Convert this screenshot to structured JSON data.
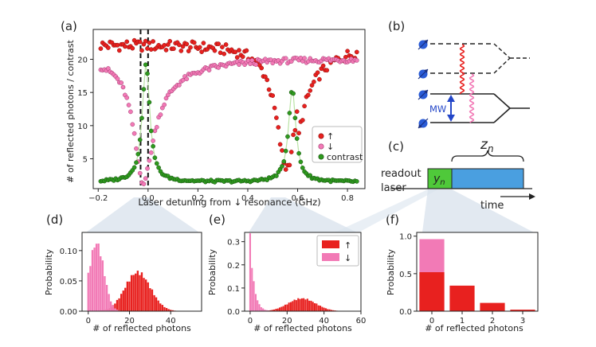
{
  "colors": {
    "up": "#e8211f",
    "down": "#f27ab6",
    "contrast": "#2e9a1e",
    "contrast_line": "#b9e3a4",
    "mw": "#2346c8",
    "readout": "#4fc93a",
    "zbox": "#4a9fe0",
    "arrow_red": "#e8211f",
    "arrow_pink": "#f27ab6"
  },
  "panels": {
    "a": {
      "label": "(a)",
      "xlabel": "Laser detuning from ↓ resonance (GHz)",
      "ylabel": "# of reflected photons / contrast",
      "legend_up": "↑",
      "legend_down": "↓",
      "legend_contrast": "contrast"
    },
    "b": {
      "label": "(b)",
      "mw_label": "MW"
    },
    "c": {
      "label": "(c)",
      "z_label": "z",
      "z_sub": "n",
      "y_label": "y",
      "y_sub": "n",
      "readout_label": "readout",
      "laser_label": "laser",
      "time_label": "time"
    },
    "d": {
      "label": "(d)",
      "xlabel": "# of reflected photons",
      "ylabel": "Probability"
    },
    "e": {
      "label": "(e)",
      "xlabel": "# of reflected photons",
      "ylabel": "Probability",
      "legend_up": "↑",
      "legend_down": "↓"
    },
    "f": {
      "label": "(f)",
      "xlabel": "# of reflected photons",
      "ylabel": "Probability"
    }
  },
  "chart_data": [
    {
      "id": "a",
      "type": "scatter",
      "xlim": [
        -0.22,
        0.87
      ],
      "ylim": [
        0.5,
        24.5
      ],
      "xticks": [
        -0.2,
        0.0,
        0.2,
        0.4,
        0.6,
        0.8
      ],
      "xtick_labels": [
        "−0.2",
        "0.0",
        "0.2",
        "0.4",
        "0.6",
        "0.8"
      ],
      "yticks": [
        5,
        10,
        15,
        20
      ],
      "ytick_labels": [
        "5",
        "10",
        "15",
        "20"
      ],
      "vlines": [
        -0.03,
        0.0
      ],
      "series": [
        {
          "name": "↑",
          "model": "up",
          "x_start": -0.19,
          "x_end": 0.84,
          "step": 0.0075
        },
        {
          "name": "↓",
          "model": "down",
          "x_start": -0.19,
          "x_end": 0.84,
          "step": 0.0075
        },
        {
          "name": "contrast",
          "model": "contrast",
          "x_start": -0.19,
          "x_end": 0.84,
          "step": 0.0075
        }
      ]
    },
    {
      "id": "d",
      "type": "bar",
      "xlim": [
        -3,
        55
      ],
      "ylim": [
        0,
        0.13
      ],
      "xticks": [
        0,
        20,
        40
      ],
      "xtick_labels": [
        "0",
        "20",
        "40"
      ],
      "yticks": [
        0,
        0.05,
        0.1
      ],
      "ytick_labels": [
        "0.00",
        "0.05",
        "0.10"
      ],
      "series": [
        {
          "name": "↑",
          "dist": "gauss",
          "mu": 24,
          "sigma": 6.2,
          "peak": 0.064,
          "from": 2,
          "to": 48
        },
        {
          "name": "↓",
          "dist": "gauss",
          "mu": 4,
          "sigma": 3.6,
          "peak": 0.112,
          "from": 0,
          "to": 22
        }
      ]
    },
    {
      "id": "e",
      "type": "bar",
      "xlim": [
        -3,
        60
      ],
      "ylim": [
        0,
        0.34
      ],
      "xticks": [
        0,
        20,
        40,
        60
      ],
      "xtick_labels": [
        "0",
        "20",
        "40",
        "60"
      ],
      "yticks": [
        0,
        0.1,
        0.2,
        0.3
      ],
      "ytick_labels": [
        "0.0",
        "0.1",
        "0.2",
        "0.3"
      ],
      "series": [
        {
          "name": "↑",
          "dist": "gauss",
          "mu": 28,
          "sigma": 7.5,
          "peak": 0.055,
          "from": 6,
          "to": 55
        },
        {
          "name": "↓",
          "dist": "geom",
          "peak": 0.32,
          "ratio": 0.62,
          "from": 0,
          "to": 12
        }
      ]
    },
    {
      "id": "f",
      "type": "bar",
      "categories": [
        "0",
        "1",
        "2",
        "3"
      ],
      "xlim": [
        -0.5,
        3.5
      ],
      "ylim": [
        0,
        1.05
      ],
      "yticks": [
        0,
        0.5,
        1.0
      ],
      "ytick_labels": [
        "0.0",
        "0.5",
        "1.0"
      ],
      "series": [
        {
          "name": "↑",
          "values": [
            0.52,
            0.34,
            0.11,
            0.02
          ]
        },
        {
          "name": "↓",
          "values": [
            0.96,
            0.0,
            0.0,
            0.0
          ]
        }
      ]
    }
  ]
}
